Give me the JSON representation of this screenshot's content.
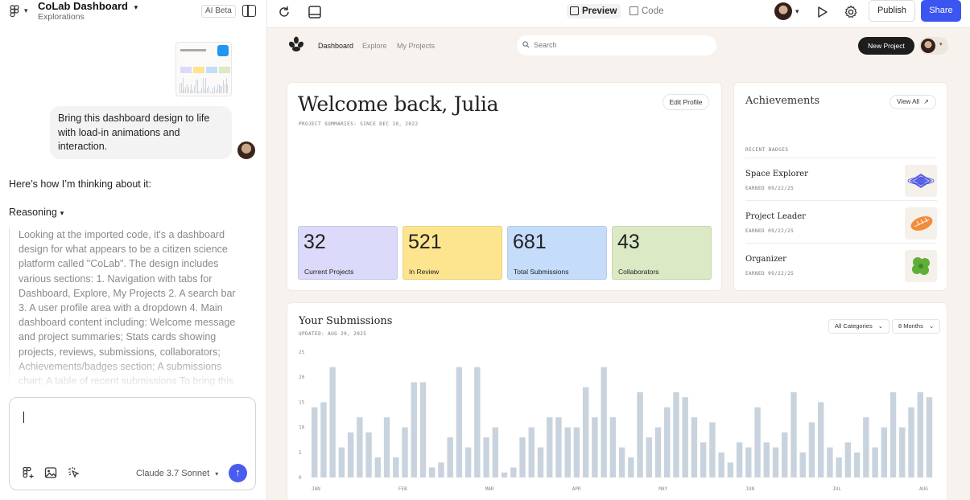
{
  "project": {
    "title": "CoLab Dashboard",
    "subtitle": "Explorations",
    "ai_badge": "AI Beta"
  },
  "chat": {
    "user_message": "Bring this dashboard design to life with load-in animations and interaction.",
    "assistant_intro": "Here’s how I’m thinking about it:",
    "reasoning_label": "Reasoning",
    "reasoning_text": "Looking at the imported code, it's a dashboard design for what appears to be a citizen science platform called \"CoLab\". The design includes various sections: 1. Navigation with tabs for Dashboard, Explore, My Projects 2. A search bar 3. A user profile area with a dropdown 4. Main dashboard content including: Welcome message and project summaries; Stats cards showing projects, reviews, submissions, collaborators; Achievements/badges section; A submissions chart; A table of recent submissions To bring this",
    "model": "Claude 3.7 Sonnet"
  },
  "toolbar": {
    "preview_label": "Preview",
    "code_label": "Code",
    "publish_label": "Publish",
    "share_label": "Share"
  },
  "site": {
    "nav": [
      "Dashboard",
      "Explore",
      "My Projects"
    ],
    "search_placeholder": "Search",
    "new_project": "New Project"
  },
  "welcome": {
    "title": "Welcome back, Julia",
    "subtitle": "PROJECT SUMMARIES: SINCE DEC 10, 2022",
    "edit_profile": "Edit Profile",
    "stats": [
      {
        "value": "32",
        "label": "Current Projects",
        "color": "#dcdafa"
      },
      {
        "value": "521",
        "label": "In Review",
        "color": "#fde58f"
      },
      {
        "value": "681",
        "label": "Total Submissions",
        "color": "#c5ddfb"
      },
      {
        "value": "43",
        "label": "Collaborators",
        "color": "#dbe9c4"
      }
    ]
  },
  "achievements": {
    "title": "Achievements",
    "view_all": "View All",
    "recent_label": "RECENT BADGES",
    "badges": [
      {
        "name": "Space Explorer",
        "earned": "EARNED 09/22/25",
        "icon": "planet-badge-icon"
      },
      {
        "name": "Project Leader",
        "earned": "EARNED 09/22/25",
        "icon": "football-badge-icon"
      },
      {
        "name": "Organizer",
        "earned": "EARNED 09/22/25",
        "icon": "clover-badge-icon"
      }
    ]
  },
  "submissions": {
    "title": "Your Submissions",
    "updated": "UPDATED: AUG 20, 2025",
    "filter_category": "All Categories",
    "filter_range": "8 Months"
  },
  "chart_data": {
    "type": "bar",
    "ylim": [
      0,
      25
    ],
    "yticks": [
      "25",
      "20",
      "15",
      "10",
      "5",
      "0"
    ],
    "months": [
      "JAN",
      "FEB",
      "MAR",
      "APR",
      "MAY",
      "JUN",
      "JUL",
      "AUG"
    ],
    "bar_color": "#c9d3dd",
    "values": [
      14,
      15,
      22,
      6,
      9,
      12,
      9,
      4,
      12,
      4,
      10,
      19,
      19,
      2,
      3,
      8,
      22,
      6,
      22,
      8,
      10,
      1,
      2,
      8,
      10,
      6,
      12,
      12,
      10,
      10,
      18,
      12,
      22,
      12,
      6,
      4,
      17,
      8,
      10,
      14,
      17,
      16,
      12,
      7,
      11,
      5,
      3,
      7,
      6,
      14,
      7,
      6,
      9,
      17,
      5,
      11,
      15,
      6,
      4,
      7,
      5,
      12,
      6,
      10,
      17,
      10,
      14,
      17,
      16
    ]
  },
  "colors": {
    "share": "#3b55f0",
    "send": "#4a5cf0",
    "preview_bg": "#f7f2ed"
  }
}
